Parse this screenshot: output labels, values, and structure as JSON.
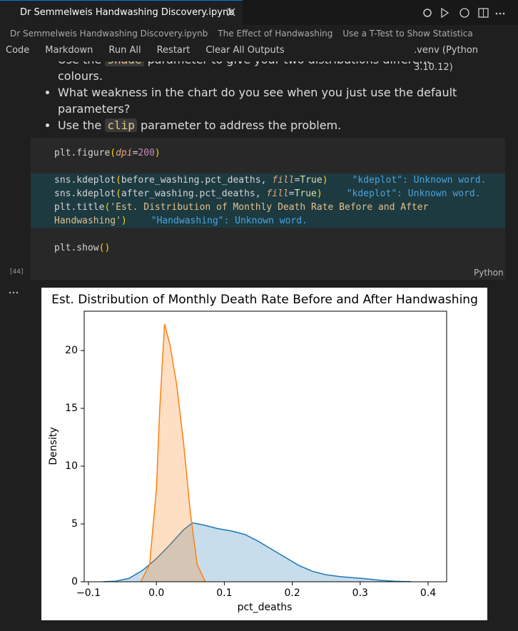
{
  "tab": {
    "title": "Dr Semmelweis Handwashing Discovery.ipynb"
  },
  "breadcrumb": [
    "Dr Semmelweis Handwashing Discovery.ipynb",
    "The Effect of Handwashing",
    "Use a T-Test to Show Statistica"
  ],
  "toolbar": {
    "buttons": [
      "Code",
      "Markdown",
      "Run All",
      "Restart",
      "Clear All Outputs"
    ],
    "kernel": ".venv (Python 3.10.12)"
  },
  "markdown": {
    "bullets": [
      [
        {
          "text": "Use the "
        },
        {
          "text": "shade",
          "code": true
        },
        {
          "text": " parameter to give your two distributions different colours."
        }
      ],
      [
        {
          "text": "What weakness in the chart do you see when you just use the default parameters?"
        }
      ],
      [
        {
          "text": "Use the "
        },
        {
          "text": "clip",
          "code": true
        },
        {
          "text": " parameter to address the problem."
        }
      ]
    ]
  },
  "cell": {
    "execution_count": "[44]",
    "language": "Python",
    "lines": [
      {
        "tokens": [
          {
            "text": "plt.figure",
            "color": "#d4d4d4"
          },
          {
            "text": "(",
            "color": "#ffd700"
          },
          {
            "text": "dpi",
            "color": "#e8a87c",
            "italic": true
          },
          {
            "text": "=",
            "color": "#d4d4d4"
          },
          {
            "text": "200",
            "color": "#c586c0"
          },
          {
            "text": ")",
            "color": "#ffd700"
          }
        ]
      },
      {
        "tokens": []
      },
      {
        "highlight": true,
        "tokens": [
          {
            "text": "sns.kdeplot",
            "color": "#d4d4d4"
          },
          {
            "text": "(",
            "color": "#ffd700"
          },
          {
            "text": "before_washing.pct_deaths, ",
            "color": "#d4d4d4"
          },
          {
            "text": "fill",
            "color": "#e8a87c",
            "italic": true
          },
          {
            "text": "=",
            "color": "#d4d4d4"
          },
          {
            "text": "True",
            "color": "#dcdcaa"
          },
          {
            "text": ")",
            "color": "#ffd700"
          }
        ],
        "diagnostic": "\"kdeplot\": Unknown word."
      },
      {
        "highlight": true,
        "tokens": [
          {
            "text": "sns.kdeplot",
            "color": "#d4d4d4"
          },
          {
            "text": "(",
            "color": "#ffd700"
          },
          {
            "text": "after_washing.pct_deaths, ",
            "color": "#d4d4d4"
          },
          {
            "text": "fill",
            "color": "#e8a87c",
            "italic": true
          },
          {
            "text": "=",
            "color": "#d4d4d4"
          },
          {
            "text": "True",
            "color": "#dcdcaa"
          },
          {
            "text": ")",
            "color": "#ffd700"
          }
        ],
        "diagnostic": "\"kdeplot\": Unknown word."
      },
      {
        "highlight": true,
        "tokens": [
          {
            "text": "plt.title",
            "color": "#d4d4d4"
          },
          {
            "text": "(",
            "color": "#ffd700"
          },
          {
            "text": "'Est. Distribution of Monthly Death Rate Before and After",
            "color": "#e2c08d"
          }
        ]
      },
      {
        "highlight": true,
        "tokens": [
          {
            "text": "Handwashing'",
            "color": "#e2c08d"
          },
          {
            "text": ")",
            "color": "#ffd700"
          }
        ],
        "diagnostic": "\"Handwashing\": Unknown word."
      },
      {
        "tokens": []
      },
      {
        "tokens": [
          {
            "text": "plt.show",
            "color": "#d4d4d4"
          },
          {
            "text": "()",
            "color": "#ffd700"
          }
        ]
      }
    ]
  },
  "chart_data": {
    "type": "area",
    "title": "Est. Distribution of Monthly Death Rate Before and After Handwashing",
    "x_label": "pct_deaths",
    "y_label": "Density",
    "xlim": [
      -0.1063,
      0.4273
    ],
    "ylim": [
      0,
      23.4
    ],
    "xticks": [
      {
        "value": -0.1,
        "label": "−0.1"
      },
      {
        "value": 0,
        "label": "0.0"
      },
      0.1,
      0.2,
      0.3,
      0.4
    ],
    "yticks": [
      0,
      5,
      10,
      15,
      20
    ],
    "series": [
      {
        "color": "#1f77b4",
        "x": [
          -0.078,
          -0.06,
          -0.04,
          -0.02,
          0,
          0.02,
          0.04,
          0.053,
          0.07,
          0.09,
          0.11,
          0.13,
          0.15,
          0.17,
          0.19,
          0.21,
          0.23,
          0.25,
          0.27,
          0.29,
          0.31,
          0.33,
          0.35,
          0.375
        ],
        "values": [
          0.01,
          0.05,
          0.3,
          1.0,
          2.0,
          3.2,
          4.5,
          5.1,
          4.9,
          4.6,
          4.4,
          4.1,
          3.5,
          2.8,
          2.1,
          1.4,
          0.9,
          0.6,
          0.45,
          0.35,
          0.25,
          0.12,
          0.05,
          0.01
        ]
      },
      {
        "color": "#ff7f0e",
        "x": [
          -0.023,
          -0.01,
          0,
          0.005,
          0.012,
          0.02,
          0.03,
          0.04,
          0.05,
          0.06,
          0.072
        ],
        "values": [
          0,
          1.5,
          8,
          15,
          22.3,
          20.5,
          17,
          12,
          6,
          1.5,
          0
        ]
      }
    ]
  }
}
